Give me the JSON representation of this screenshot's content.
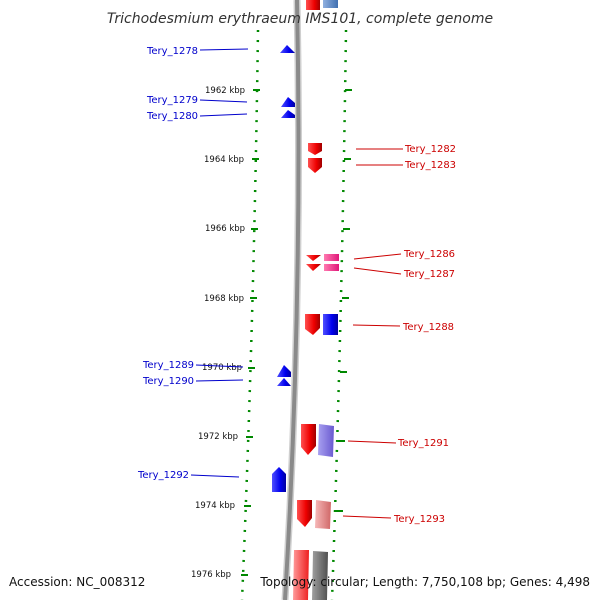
{
  "title": "Trichodesmium erythraeum IMS101, complete genome",
  "footer": {
    "accession": "Accession: NC_008312",
    "topology": "Topology: circular; Length: 7,750,108 bp; Genes: 4,498"
  },
  "scale_labels": [
    "1962 kbp",
    "1964 kbp",
    "1966 kbp",
    "1968 kbp",
    "1970 kbp",
    "1972 kbp",
    "1974 kbp",
    "1976 kbp"
  ],
  "genes_left": [
    "Tery_1278",
    "Tery_1279",
    "Tery_1280",
    "Tery_1289",
    "Tery_1290",
    "Tery_1292"
  ],
  "genes_right": [
    "Tery_1282",
    "Tery_1283",
    "Tery_1286",
    "Tery_1287",
    "Tery_1288",
    "Tery_1291",
    "Tery_1293"
  ],
  "colors": {
    "forward_strand": "#0000ee",
    "reverse_strand": "#ee0000",
    "label_left": "#0000cc",
    "label_right": "#cc0000",
    "scale_ticks": "#008800",
    "backbone": "#8a8a8a"
  }
}
